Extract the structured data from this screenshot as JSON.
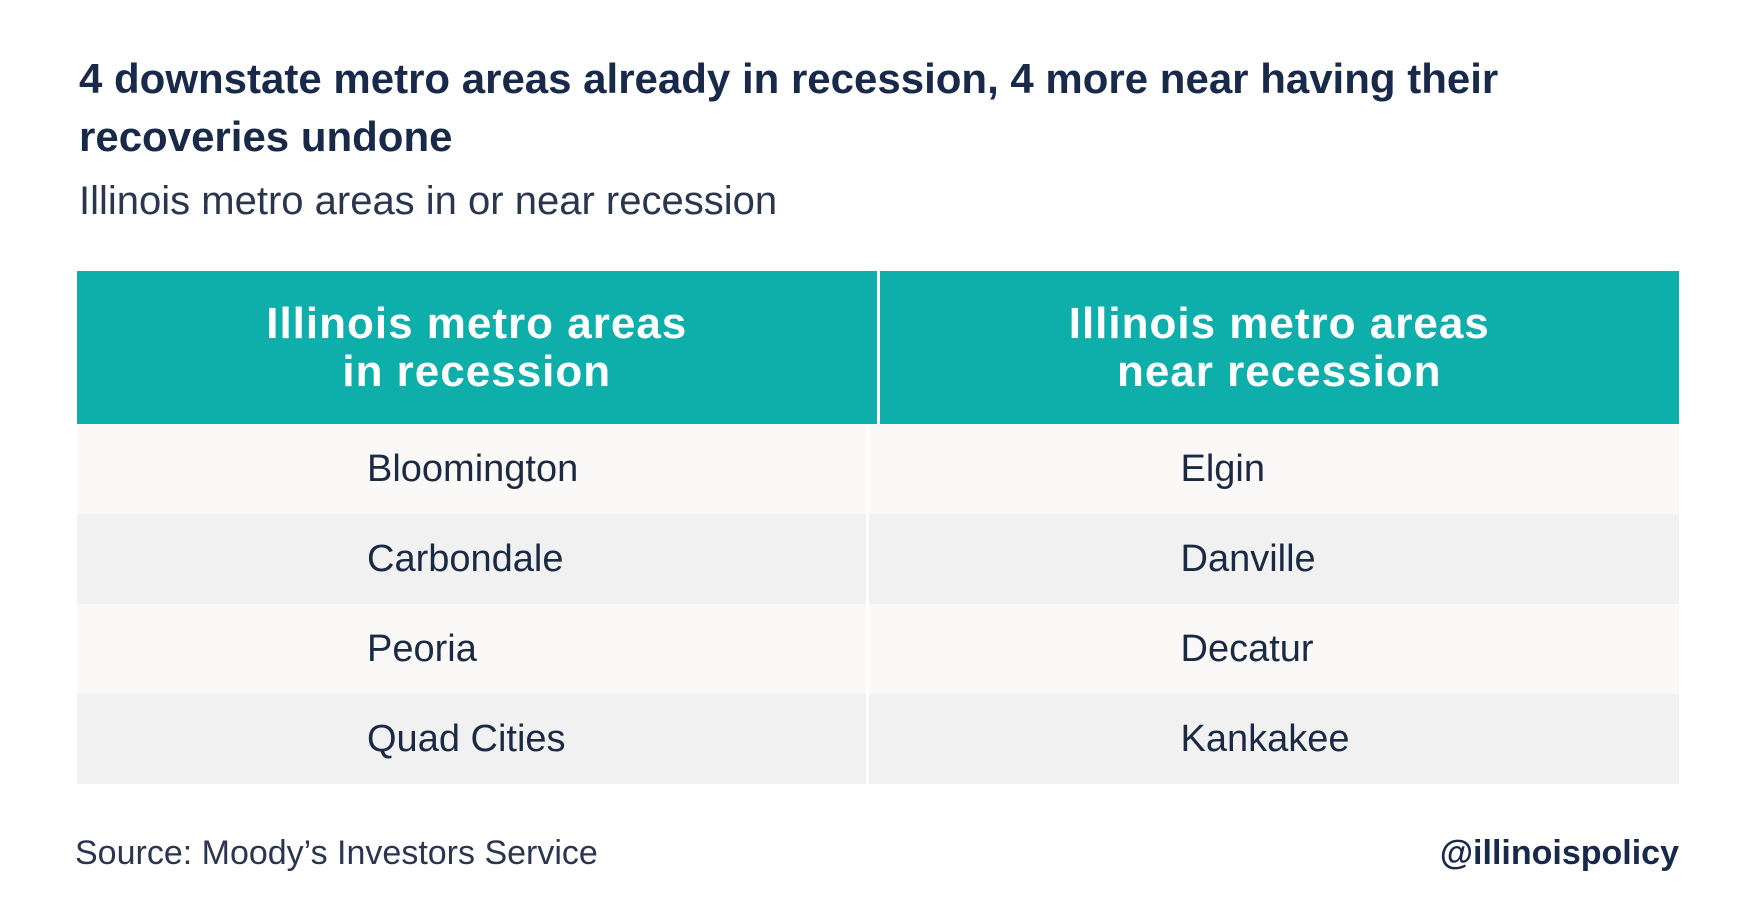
{
  "title": "4 downstate metro areas already in recession, 4 more near having their recoveries undone",
  "subtitle": "Illinois metro areas in or near recession",
  "chart_data": {
    "type": "table",
    "columns": [
      "Illinois metro areas\nin recession",
      "Illinois metro areas\nnear recession"
    ],
    "rows": [
      [
        "Bloomington",
        "Elgin"
      ],
      [
        "Carbondale",
        "Danville"
      ],
      [
        "Peoria",
        "Decatur"
      ],
      [
        "Quad Cities",
        "Kankakee"
      ]
    ],
    "colors": {
      "header_background": "#0eaeaa",
      "header_text": "#ffffff",
      "row_odd": "#faf9f7",
      "row_even": "#f1f1f1",
      "title_text": "#18294a"
    }
  },
  "footer": {
    "source": "Source: Moody’s Investors Service",
    "handle": "@illinoispolicy"
  }
}
